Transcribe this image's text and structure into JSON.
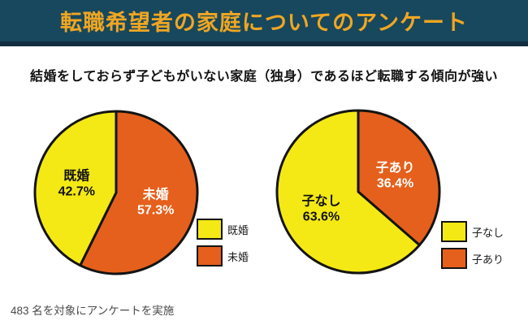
{
  "banner": {
    "title": "転職希望者の家庭についてのアンケート",
    "bg_color": "#17485d",
    "strip_color": "#122d3f",
    "title_color": "#f0a622"
  },
  "subtitle": "結婚をしておらず子どもがいない家庭（独身）であるほど転職する傾向が強い",
  "footer": "483 名を対象にアンケートを実施",
  "colors": {
    "yellow": "#f4e914",
    "orange": "#e5601c",
    "outline": "#141414"
  },
  "chart_data": [
    {
      "type": "pie",
      "name": "marital-status",
      "start_angle_deg": 0,
      "direction": "clockwise",
      "slices": [
        {
          "label": "未婚",
          "value": 57.3,
          "pct_text": "57.3%",
          "color": "#e5601c",
          "text_color": "#ffffff"
        },
        {
          "label": "既婚",
          "value": 42.7,
          "pct_text": "42.7%",
          "color": "#f4e914",
          "text_color": "#111111"
        }
      ],
      "legend": [
        {
          "label": "既婚",
          "color": "#f4e914"
        },
        {
          "label": "未婚",
          "color": "#e5601c"
        }
      ]
    },
    {
      "type": "pie",
      "name": "children-status",
      "start_angle_deg": 0,
      "direction": "clockwise",
      "slices": [
        {
          "label": "子あり",
          "value": 36.4,
          "pct_text": "36.4%",
          "color": "#e5601c",
          "text_color": "#ffffff"
        },
        {
          "label": "子なし",
          "value": 63.6,
          "pct_text": "63.6%",
          "color": "#f4e914",
          "text_color": "#111111"
        }
      ],
      "legend": [
        {
          "label": "子なし",
          "color": "#f4e914"
        },
        {
          "label": "子あり",
          "color": "#e5601c"
        }
      ]
    }
  ]
}
